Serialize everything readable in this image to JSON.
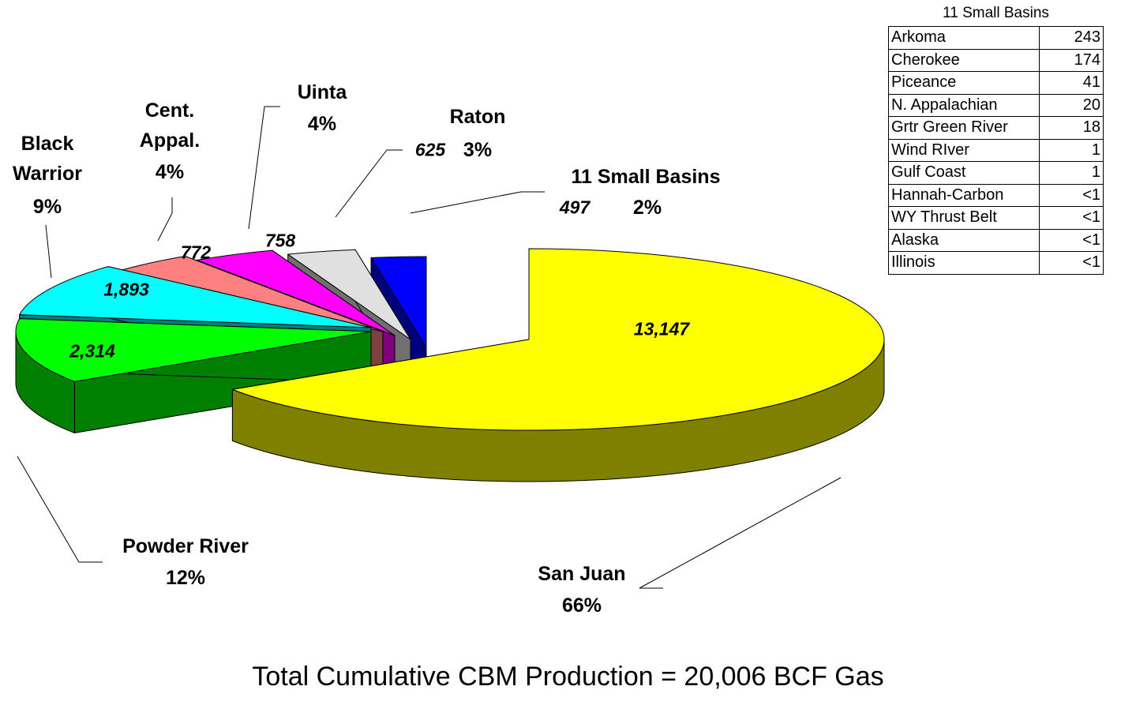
{
  "chart_data": {
    "type": "pie3d",
    "title": "Total Cumulative CBM Production = 20,006 BCF Gas",
    "categories": [
      "San Juan",
      "Powder River",
      "Black Warrior",
      "Cent. Appal.",
      "Uinta",
      "Raton",
      "11 Small Basins"
    ],
    "values": [
      13147,
      2314,
      1893,
      772,
      758,
      625,
      497
    ],
    "value_labels": [
      "13,147",
      "2,314",
      "1,893",
      "772",
      "758",
      "625",
      "497"
    ],
    "percent_labels": [
      "66%",
      "12%",
      "9%",
      "4%",
      "4%",
      "3%",
      "2%"
    ],
    "colors": [
      "#ffff00",
      "#00ff00",
      "#00ffff",
      "#ff8080",
      "#ff00ff",
      "#e0e0e0",
      "#0000ff"
    ]
  },
  "table": {
    "title": "11 Small Basins",
    "rows": [
      [
        "Arkoma",
        243
      ],
      [
        "Cherokee",
        174
      ],
      [
        "Piceance",
        41
      ],
      [
        "N. Appalachian",
        20
      ],
      [
        "Grtr Green River",
        18
      ],
      [
        "Wind RIver",
        1
      ],
      [
        "Gulf Coast",
        1
      ],
      [
        "Hannah-Carbon",
        "<1"
      ],
      [
        "WY Thrust Belt",
        "<1"
      ],
      [
        "Alaska",
        "<1"
      ],
      [
        "Illinois",
        "<1"
      ]
    ]
  }
}
